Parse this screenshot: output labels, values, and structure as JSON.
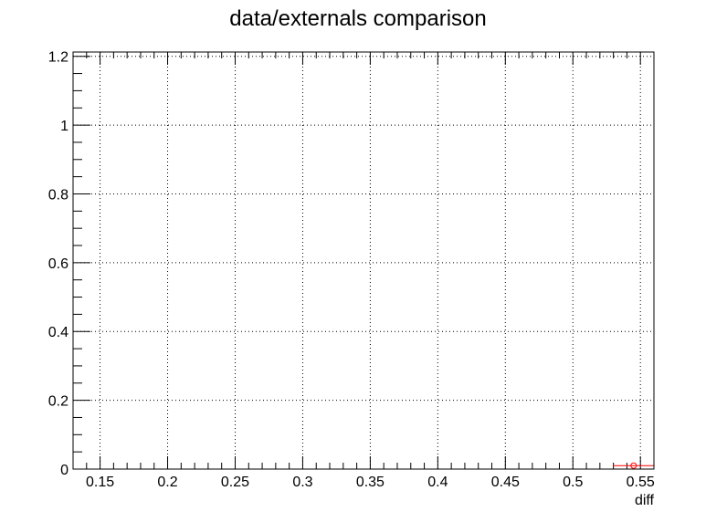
{
  "chart_data": {
    "type": "scatter",
    "title": "data/externals comparison",
    "xlabel": "diff",
    "ylabel": "",
    "xlim": [
      0.13,
      0.56
    ],
    "ylim": [
      0,
      1.2125
    ],
    "grid": true,
    "x_ticks": [
      {
        "value": 0.15,
        "label": "0.15"
      },
      {
        "value": 0.2,
        "label": "0.2"
      },
      {
        "value": 0.25,
        "label": "0.25"
      },
      {
        "value": 0.3,
        "label": "0.3"
      },
      {
        "value": 0.35,
        "label": "0.35"
      },
      {
        "value": 0.4,
        "label": "0.4"
      },
      {
        "value": 0.45,
        "label": "0.45"
      },
      {
        "value": 0.5,
        "label": "0.5"
      },
      {
        "value": 0.55,
        "label": "0.55"
      }
    ],
    "y_ticks": [
      {
        "value": 0,
        "label": "0"
      },
      {
        "value": 0.2,
        "label": "0.2"
      },
      {
        "value": 0.4,
        "label": "0.4"
      },
      {
        "value": 0.6,
        "label": "0.6"
      },
      {
        "value": 0.8,
        "label": "0.8"
      },
      {
        "value": 1,
        "label": "1"
      },
      {
        "value": 1.2,
        "label": "1.2"
      }
    ],
    "series": [
      {
        "color": "#ff0000",
        "points": [
          {
            "x": 0.545,
            "y": 0.01,
            "x_err": 0.015
          }
        ]
      }
    ]
  }
}
